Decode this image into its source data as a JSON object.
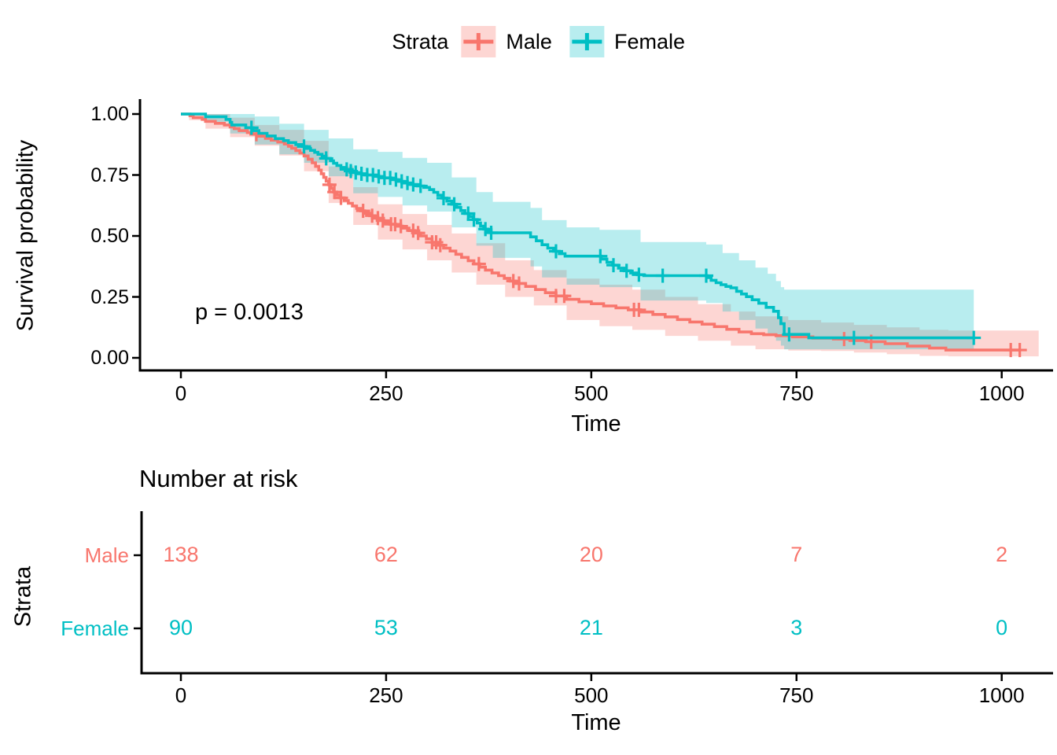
{
  "legend": {
    "title": "Strata",
    "items": [
      {
        "label": "Male",
        "color": "#F8766D",
        "fill": "rgba(248,118,109,0.30)"
      },
      {
        "label": "Female",
        "color": "#00BFC4",
        "fill": "rgba(0,191,196,0.28)"
      }
    ]
  },
  "main_plot": {
    "ylabel": "Survival probability",
    "xlabel": "Time",
    "pvalue": "p = 0.0013",
    "yticks": [
      "1.00",
      "0.75",
      "0.50",
      "0.25",
      "0.00"
    ],
    "xticks": [
      "0",
      "250",
      "500",
      "750",
      "1000"
    ]
  },
  "risk_table": {
    "title": "Number at risk",
    "ylabel": "Strata",
    "xlabel": "Time",
    "xticks": [
      "0",
      "250",
      "500",
      "750",
      "1000"
    ],
    "rows": [
      {
        "label": "Male",
        "color": "#F8766D",
        "counts": [
          "138",
          "62",
          "20",
          "7",
          "2"
        ]
      },
      {
        "label": "Female",
        "color": "#00BFC4",
        "counts": [
          "90",
          "53",
          "21",
          "3",
          "0"
        ]
      }
    ]
  },
  "chart_data": {
    "type": "line",
    "subtype": "kaplan-meier-step",
    "title": "",
    "xlabel": "Time",
    "ylabel": "Survival probability",
    "xlim": [
      0,
      1045
    ],
    "ylim": [
      0,
      1
    ],
    "xticks": [
      0,
      250,
      500,
      750,
      1000
    ],
    "yticks": [
      0,
      0.25,
      0.5,
      0.75,
      1.0
    ],
    "pvalue_annotation": "p = 0.0013",
    "legend_title": "Strata",
    "legend_position": "top",
    "grid": false,
    "series": [
      {
        "name": "Male",
        "color": "#F8766D",
        "band_fill": "rgba(248,118,109,0.30)",
        "steps": [
          [
            0,
            1
          ],
          [
            11,
            0.993
          ],
          [
            15,
            0.985
          ],
          [
            26,
            0.978
          ],
          [
            30,
            0.97
          ],
          [
            42,
            0.962
          ],
          [
            53,
            0.955
          ],
          [
            60,
            0.947
          ],
          [
            65,
            0.94
          ],
          [
            71,
            0.932
          ],
          [
            81,
            0.924
          ],
          [
            88,
            0.917
          ],
          [
            95,
            0.909
          ],
          [
            103,
            0.9
          ],
          [
            110,
            0.893
          ],
          [
            118,
            0.885
          ],
          [
            126,
            0.877
          ],
          [
            131,
            0.868
          ],
          [
            135,
            0.86
          ],
          [
            140,
            0.85
          ],
          [
            145,
            0.84
          ],
          [
            150,
            0.828
          ],
          [
            155,
            0.815
          ],
          [
            160,
            0.8
          ],
          [
            164,
            0.785
          ],
          [
            168,
            0.77
          ],
          [
            171,
            0.755
          ],
          [
            174,
            0.74
          ],
          [
            177,
            0.725
          ],
          [
            180,
            0.71
          ],
          [
            183,
            0.695
          ],
          [
            186,
            0.68
          ],
          [
            190,
            0.668
          ],
          [
            194,
            0.656
          ],
          [
            199,
            0.645
          ],
          [
            204,
            0.634
          ],
          [
            209,
            0.623
          ],
          [
            214,
            0.613
          ],
          [
            219,
            0.603
          ],
          [
            224,
            0.593
          ],
          [
            230,
            0.583
          ],
          [
            236,
            0.573
          ],
          [
            242,
            0.563
          ],
          [
            248,
            0.555
          ],
          [
            255,
            0.548
          ],
          [
            262,
            0.54
          ],
          [
            270,
            0.532
          ],
          [
            278,
            0.522
          ],
          [
            285,
            0.512
          ],
          [
            292,
            0.5
          ],
          [
            299,
            0.488
          ],
          [
            306,
            0.474
          ],
          [
            313,
            0.462
          ],
          [
            320,
            0.45
          ],
          [
            328,
            0.438
          ],
          [
            335,
            0.425
          ],
          [
            342,
            0.412
          ],
          [
            350,
            0.398
          ],
          [
            357,
            0.385
          ],
          [
            364,
            0.372
          ],
          [
            371,
            0.36
          ],
          [
            379,
            0.348
          ],
          [
            387,
            0.337
          ],
          [
            394,
            0.326
          ],
          [
            401,
            0.315
          ],
          [
            408,
            0.305
          ],
          [
            420,
            0.293
          ],
          [
            432,
            0.28
          ],
          [
            444,
            0.267
          ],
          [
            457,
            0.254
          ],
          [
            470,
            0.24
          ],
          [
            485,
            0.23
          ],
          [
            500,
            0.222
          ],
          [
            515,
            0.213
          ],
          [
            530,
            0.205
          ],
          [
            545,
            0.197
          ],
          [
            560,
            0.188
          ],
          [
            575,
            0.178
          ],
          [
            590,
            0.168
          ],
          [
            605,
            0.157
          ],
          [
            620,
            0.147
          ],
          [
            635,
            0.138
          ],
          [
            650,
            0.128
          ],
          [
            665,
            0.117
          ],
          [
            680,
            0.106
          ],
          [
            695,
            0.099
          ],
          [
            710,
            0.095
          ],
          [
            725,
            0.091
          ],
          [
            745,
            0.086
          ],
          [
            770,
            0.081
          ],
          [
            795,
            0.077
          ],
          [
            815,
            0.071
          ],
          [
            835,
            0.066
          ],
          [
            858,
            0.058
          ],
          [
            885,
            0.048
          ],
          [
            912,
            0.04
          ],
          [
            932,
            0.032
          ],
          [
            1022,
            0.032
          ]
        ],
        "censor_times": [
          92,
          181,
          187,
          195,
          222,
          233,
          240,
          246,
          256,
          261,
          268,
          283,
          289,
          306,
          311,
          316,
          363,
          405,
          412,
          457,
          467,
          552,
          558,
          808,
          841,
          1011,
          1022
        ],
        "band": {
          "t": [
            0,
            10,
            30,
            60,
            90,
            120,
            150,
            180,
            210,
            240,
            270,
            300,
            330,
            360,
            395,
            430,
            470,
            510,
            550,
            590,
            630,
            670,
            700,
            740,
            780,
            820,
            860,
            900,
            935,
            1045
          ],
          "lo": [
            1,
            0.975,
            0.94,
            0.905,
            0.87,
            0.83,
            0.765,
            0.635,
            0.545,
            0.485,
            0.445,
            0.4,
            0.35,
            0.3,
            0.25,
            0.215,
            0.155,
            0.13,
            0.115,
            0.09,
            0.07,
            0.05,
            0.035,
            0.03,
            0.028,
            0.022,
            0.015,
            0.008,
            0.006,
            0.006
          ],
          "hi": [
            1,
            1,
            1,
            0.985,
            0.955,
            0.935,
            0.89,
            0.785,
            0.7,
            0.63,
            0.59,
            0.545,
            0.51,
            0.47,
            0.4,
            0.36,
            0.325,
            0.3,
            0.28,
            0.25,
            0.22,
            0.19,
            0.17,
            0.155,
            0.145,
            0.135,
            0.125,
            0.115,
            0.112,
            0.112
          ]
        },
        "risk_counts": [
          138,
          62,
          20,
          7,
          2
        ]
      },
      {
        "name": "Female",
        "color": "#00BFC4",
        "band_fill": "rgba(0,191,196,0.28)",
        "steps": [
          [
            0,
            1
          ],
          [
            30,
            0.989
          ],
          [
            55,
            0.978
          ],
          [
            60,
            0.966
          ],
          [
            62,
            0.955
          ],
          [
            79,
            0.944
          ],
          [
            88,
            0.932
          ],
          [
            95,
            0.921
          ],
          [
            105,
            0.91
          ],
          [
            115,
            0.899
          ],
          [
            125,
            0.891
          ],
          [
            131,
            0.883
          ],
          [
            140,
            0.875
          ],
          [
            148,
            0.867
          ],
          [
            153,
            0.859
          ],
          [
            158,
            0.851
          ],
          [
            163,
            0.843
          ],
          [
            167,
            0.835
          ],
          [
            172,
            0.827
          ],
          [
            177,
            0.818
          ],
          [
            182,
            0.808
          ],
          [
            186,
            0.798
          ],
          [
            190,
            0.789
          ],
          [
            195,
            0.781
          ],
          [
            200,
            0.773
          ],
          [
            205,
            0.766
          ],
          [
            210,
            0.76
          ],
          [
            216,
            0.755
          ],
          [
            224,
            0.75
          ],
          [
            240,
            0.744
          ],
          [
            248,
            0.738
          ],
          [
            256,
            0.731
          ],
          [
            264,
            0.724
          ],
          [
            272,
            0.717
          ],
          [
            280,
            0.711
          ],
          [
            288,
            0.705
          ],
          [
            296,
            0.699
          ],
          [
            303,
            0.69
          ],
          [
            308,
            0.679
          ],
          [
            313,
            0.667
          ],
          [
            318,
            0.655
          ],
          [
            324,
            0.643
          ],
          [
            330,
            0.63
          ],
          [
            336,
            0.617
          ],
          [
            341,
            0.604
          ],
          [
            346,
            0.592
          ],
          [
            351,
            0.58
          ],
          [
            356,
            0.567
          ],
          [
            361,
            0.553
          ],
          [
            365,
            0.54
          ],
          [
            369,
            0.528
          ],
          [
            374,
            0.519
          ],
          [
            378,
            0.513
          ],
          [
            426,
            0.496
          ],
          [
            433,
            0.48
          ],
          [
            440,
            0.464
          ],
          [
            447,
            0.45
          ],
          [
            454,
            0.437
          ],
          [
            461,
            0.427
          ],
          [
            468,
            0.417
          ],
          [
            512,
            0.405
          ],
          [
            519,
            0.392
          ],
          [
            526,
            0.38
          ],
          [
            533,
            0.368
          ],
          [
            540,
            0.357
          ],
          [
            548,
            0.348
          ],
          [
            556,
            0.341
          ],
          [
            564,
            0.337
          ],
          [
            641,
            0.329
          ],
          [
            646,
            0.318
          ],
          [
            652,
            0.308
          ],
          [
            658,
            0.3
          ],
          [
            664,
            0.293
          ],
          [
            670,
            0.287
          ],
          [
            677,
            0.273
          ],
          [
            683,
            0.262
          ],
          [
            689,
            0.251
          ],
          [
            696,
            0.238
          ],
          [
            704,
            0.224
          ],
          [
            713,
            0.207
          ],
          [
            722,
            0.191
          ],
          [
            728,
            0.165
          ],
          [
            731,
            0.14
          ],
          [
            735,
            0.096
          ],
          [
            765,
            0.082
          ],
          [
            966,
            0.082
          ]
        ],
        "censor_times": [
          86,
          150,
          177,
          202,
          207,
          213,
          220,
          227,
          234,
          241,
          248,
          255,
          262,
          269,
          276,
          283,
          292,
          320,
          333,
          350,
          357,
          371,
          378,
          457,
          511,
          527,
          543,
          558,
          587,
          640,
          741,
          820,
          966
        ],
        "band": {
          "t": [
            0,
            30,
            60,
            90,
            120,
            150,
            180,
            210,
            240,
            270,
            300,
            330,
            360,
            380,
            426,
            440,
            470,
            510,
            560,
            640,
            660,
            680,
            700,
            715,
            725,
            731,
            735,
            966
          ],
          "lo": [
            1,
            0.968,
            0.92,
            0.875,
            0.835,
            0.8,
            0.745,
            0.675,
            0.66,
            0.625,
            0.6,
            0.535,
            0.46,
            0.41,
            0.375,
            0.33,
            0.3,
            0.29,
            0.235,
            0.225,
            0.19,
            0.155,
            0.12,
            0.1,
            0.07,
            0.05,
            0.035,
            0.035
          ],
          "hi": [
            1,
            1,
            1,
            0.99,
            0.96,
            0.935,
            0.9,
            0.855,
            0.845,
            0.82,
            0.8,
            0.74,
            0.68,
            0.64,
            0.615,
            0.565,
            0.535,
            0.525,
            0.475,
            0.465,
            0.43,
            0.4,
            0.37,
            0.345,
            0.315,
            0.29,
            0.28,
            0.28
          ]
        },
        "risk_counts": [
          90,
          53,
          21,
          3,
          0
        ]
      }
    ],
    "risk_table": {
      "title": "Number at risk",
      "times": [
        0,
        250,
        500,
        750,
        1000
      ]
    }
  }
}
